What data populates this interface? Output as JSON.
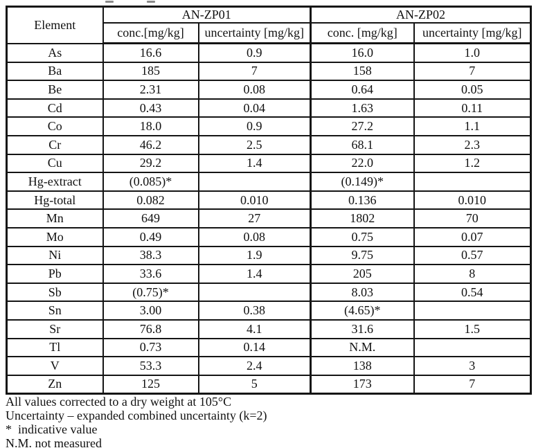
{
  "page": {
    "background_color": "#ffffff",
    "text_color": "#111111",
    "border_color": "#141414"
  },
  "table": {
    "element_header": "Element",
    "groups": [
      {
        "label": "AN-ZP01",
        "conc_header": "conc.[mg/kg]",
        "uncertainty_header": "uncertainty [mg/kg]"
      },
      {
        "label": "AN-ZP02",
        "conc_header": "conc. [mg/kg]",
        "uncertainty_header": "uncertainty [mg/kg]"
      }
    ],
    "rows": [
      {
        "element": "As",
        "zp01_conc": "16.6",
        "zp01_unc": "0.9",
        "zp02_conc": "16.0",
        "zp02_unc": "1.0"
      },
      {
        "element": "Ba",
        "zp01_conc": "185",
        "zp01_unc": "7",
        "zp02_conc": "158",
        "zp02_unc": "7"
      },
      {
        "element": "Be",
        "zp01_conc": "2.31",
        "zp01_unc": "0.08",
        "zp02_conc": "0.64",
        "zp02_unc": "0.05"
      },
      {
        "element": "Cd",
        "zp01_conc": "0.43",
        "zp01_unc": "0.04",
        "zp02_conc": "1.63",
        "zp02_unc": "0.11"
      },
      {
        "element": "Co",
        "zp01_conc": "18.0",
        "zp01_unc": "0.9",
        "zp02_conc": "27.2",
        "zp02_unc": "1.1"
      },
      {
        "element": "Cr",
        "zp01_conc": "46.2",
        "zp01_unc": "2.5",
        "zp02_conc": "68.1",
        "zp02_unc": "2.3"
      },
      {
        "element": "Cu",
        "zp01_conc": "29.2",
        "zp01_unc": "1.4",
        "zp02_conc": "22.0",
        "zp02_unc": "1.2"
      },
      {
        "element": "Hg-extract",
        "zp01_conc": "(0.085)*",
        "zp01_unc": "",
        "zp02_conc": "(0.149)*",
        "zp02_unc": ""
      },
      {
        "element": "Hg-total",
        "zp01_conc": "0.082",
        "zp01_unc": "0.010",
        "zp02_conc": "0.136",
        "zp02_unc": "0.010"
      },
      {
        "element": "Mn",
        "zp01_conc": "649",
        "zp01_unc": "27",
        "zp02_conc": "1802",
        "zp02_unc": "70"
      },
      {
        "element": "Mo",
        "zp01_conc": "0.49",
        "zp01_unc": "0.08",
        "zp02_conc": "0.75",
        "zp02_unc": "0.07"
      },
      {
        "element": "Ni",
        "zp01_conc": "38.3",
        "zp01_unc": "1.9",
        "zp02_conc": "9.75",
        "zp02_unc": "0.57"
      },
      {
        "element": "Pb",
        "zp01_conc": "33.6",
        "zp01_unc": "1.4",
        "zp02_conc": "205",
        "zp02_unc": "8"
      },
      {
        "element": "Sb",
        "zp01_conc": "(0.75)*",
        "zp01_unc": "",
        "zp02_conc": "8.03",
        "zp02_unc": "0.54"
      },
      {
        "element": "Sn",
        "zp01_conc": "3.00",
        "zp01_unc": "0.38",
        "zp02_conc": "(4.65)*",
        "zp02_unc": ""
      },
      {
        "element": "Sr",
        "zp01_conc": "76.8",
        "zp01_unc": "4.1",
        "zp02_conc": "31.6",
        "zp02_unc": "1.5"
      },
      {
        "element": "Tl",
        "zp01_conc": "0.73",
        "zp01_unc": "0.14",
        "zp02_conc": "N.M.",
        "zp02_unc": ""
      },
      {
        "element": "V",
        "zp01_conc": "53.3",
        "zp01_unc": "2.4",
        "zp02_conc": "138",
        "zp02_unc": "3"
      },
      {
        "element": "Zn",
        "zp01_conc": "125",
        "zp01_unc": "5",
        "zp02_conc": "173",
        "zp02_unc": "7"
      }
    ]
  },
  "footnotes": [
    "All values corrected to a dry weight at 105°C",
    "Uncertainty – expanded combined uncertainty (k=2)",
    "*  indicative value",
    "N.M. not measured"
  ]
}
